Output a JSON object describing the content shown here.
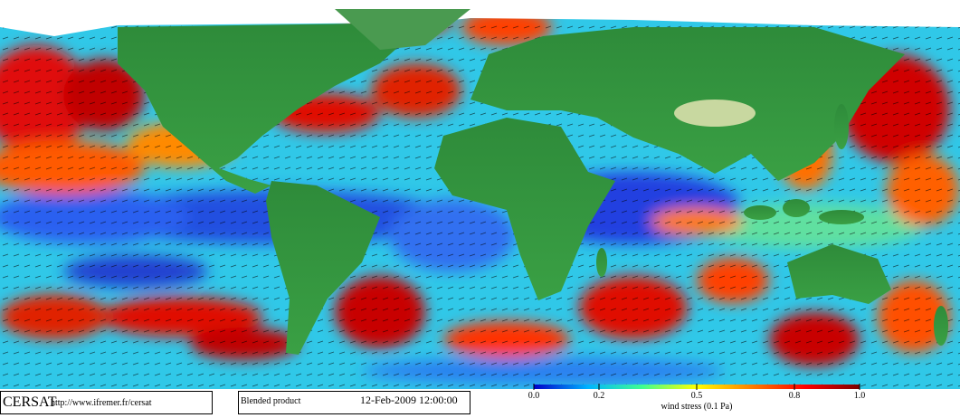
{
  "map": {
    "source": "CERSAT",
    "url": "http://www.ifremer.fr/cersat",
    "product": "Blended product",
    "date": "12-Feb-2009 12:00:00",
    "colorbar": {
      "label": "wind stress (0.1 Pa)",
      "range": [
        0,
        1
      ],
      "ticks": [
        {
          "value": 0,
          "label": "0.0"
        },
        0.2,
        0.5,
        0.8,
        {
          "value": 1,
          "label": "1.0"
        }
      ],
      "colors": [
        "#0000c8",
        "#00b4ff",
        "#40ff90",
        "#ffff00",
        "#ff8000",
        "#ff0000",
        "#7a0000"
      ]
    }
  }
}
